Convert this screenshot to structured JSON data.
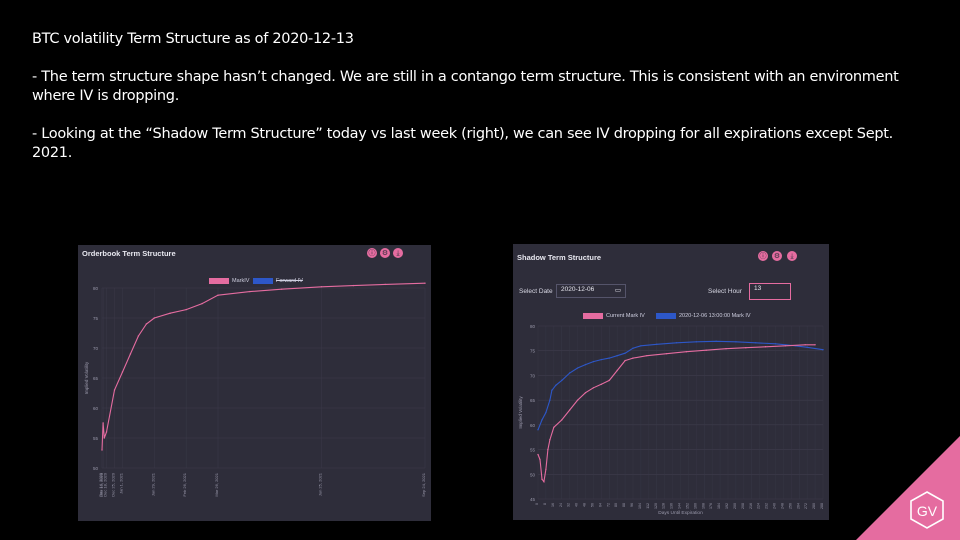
{
  "slide": {
    "heading": "BTC volatility Term Structure as of 2020-12-13",
    "bullet1": "- The term structure shape hasn’t changed. We are still in a contango term structure. This is consistent with an environment where IV is dropping.",
    "bullet2": "- Looking at the “Shadow Term Structure” today vs last week (right), we can see IV dropping for all expirations except Sept. 2021."
  },
  "colors": {
    "mark_iv": "#e56ca0",
    "forward_iv": "#2d57c8",
    "panel_bg": "#2e2d3a",
    "logo": "#e56ca0"
  },
  "left_panel": {
    "title": "Orderbook Term Structure",
    "buttons": [
      "info-icon",
      "settings-icon",
      "download-icon"
    ],
    "button_glyphs": [
      "ⓘ",
      "⚙",
      "⤓"
    ],
    "legend": [
      {
        "label": "MarkIV",
        "color": "#e56ca0"
      },
      {
        "label": "Forward IV",
        "color": "#2d57c8",
        "hidden": true
      }
    ],
    "ylabel": "Implied Volatility",
    "y_ticks": [
      "80",
      "75",
      "70",
      "65",
      "60",
      "55",
      "50"
    ],
    "x_ticks": [
      "Dec 14, 2020",
      "Dec 15, 2020",
      "Dec 18, 2020",
      "Dec 25, 2020",
      "Jan 1, 2021",
      "Jan 29, 2021",
      "Feb 26, 2021",
      "Mar 26, 2021",
      "Jun 25, 2021",
      "Sep 24, 2021"
    ]
  },
  "right_panel": {
    "title": "Shadow Term Structure",
    "buttons": [
      "info-icon",
      "settings-icon",
      "download-icon"
    ],
    "button_glyphs": [
      "ⓘ",
      "⚙",
      "⤓"
    ],
    "select_date_label": "Select Date",
    "select_date_value": "2020-12-06",
    "select_hour_label": "Select Hour",
    "select_hour_value": "13",
    "legend": [
      {
        "label": "Current Mark IV",
        "color": "#e56ca0"
      },
      {
        "label": "2020-12-06 13:00:00 Mark IV",
        "color": "#2d57c8"
      }
    ],
    "ylabel": "Implied Volatility",
    "xlabel": "Days Until Expiration",
    "y_ticks": [
      "80",
      "75",
      "70",
      "65",
      "60",
      "55",
      "50",
      "45"
    ]
  },
  "chart_data": [
    {
      "type": "line",
      "title": "Orderbook Term Structure",
      "ylabel": "Implied Volatility",
      "x_dates": [
        "2020-12-14",
        "2020-12-15",
        "2020-12-18",
        "2020-12-25",
        "2021-01-01",
        "2021-01-29",
        "2021-02-26",
        "2021-03-26",
        "2021-06-25",
        "2021-09-24"
      ],
      "ylim": [
        50,
        80
      ],
      "series": [
        {
          "name": "MarkIV",
          "points": [
            [
              "2020-12-14",
              53
            ],
            [
              "2020-12-15",
              57.5
            ],
            [
              "2020-12-16",
              55
            ],
            [
              "2020-12-18",
              56
            ],
            [
              "2020-12-25",
              63
            ],
            [
              "2021-01-01",
              66
            ],
            [
              "2021-01-08",
              69
            ],
            [
              "2021-01-15",
              72
            ],
            [
              "2021-01-22",
              74
            ],
            [
              "2021-01-29",
              75
            ],
            [
              "2021-02-12",
              75.8
            ],
            [
              "2021-02-26",
              76.4
            ],
            [
              "2021-03-12",
              77.4
            ],
            [
              "2021-03-26",
              78.8
            ],
            [
              "2021-04-23",
              79.4
            ],
            [
              "2021-05-21",
              79.8
            ],
            [
              "2021-06-25",
              80.2
            ],
            [
              "2021-07-23",
              80.4
            ],
            [
              "2021-08-20",
              80.6
            ],
            [
              "2021-09-24",
              80.8
            ]
          ]
        },
        {
          "name": "Forward IV",
          "points": []
        }
      ]
    },
    {
      "type": "line",
      "title": "Shadow Term Structure",
      "xlabel": "Days Until Expiration",
      "ylabel": "Implied Volatility",
      "xlim": [
        0,
        288
      ],
      "ylim": [
        45,
        80
      ],
      "series": [
        {
          "name": "Current Mark IV",
          "points": [
            [
              0,
              54
            ],
            [
              2,
              53
            ],
            [
              4,
              49
            ],
            [
              6,
              48.5
            ],
            [
              8,
              51
            ],
            [
              10,
              55
            ],
            [
              12,
              57
            ],
            [
              16,
              59.5
            ],
            [
              24,
              61
            ],
            [
              32,
              63
            ],
            [
              40,
              65
            ],
            [
              48,
              66.5
            ],
            [
              56,
              67.5
            ],
            [
              64,
              68.2
            ],
            [
              72,
              69
            ],
            [
              80,
              71
            ],
            [
              88,
              73
            ],
            [
              96,
              73.5
            ],
            [
              110,
              74
            ],
            [
              130,
              74.4
            ],
            [
              150,
              74.8
            ],
            [
              170,
              75.1
            ],
            [
              190,
              75.4
            ],
            [
              210,
              75.6
            ],
            [
              230,
              75.8
            ],
            [
              250,
              76
            ],
            [
              270,
              76.2
            ],
            [
              280,
              76.2
            ]
          ]
        },
        {
          "name": "2020-12-06 13:00:00 Mark IV",
          "points": [
            [
              0,
              59
            ],
            [
              4,
              61
            ],
            [
              8,
              62.5
            ],
            [
              12,
              65
            ],
            [
              14,
              67
            ],
            [
              18,
              68
            ],
            [
              24,
              69
            ],
            [
              32,
              70.5
            ],
            [
              40,
              71.5
            ],
            [
              48,
              72.2
            ],
            [
              56,
              72.8
            ],
            [
              64,
              73.2
            ],
            [
              72,
              73.5
            ],
            [
              80,
              74
            ],
            [
              88,
              74.5
            ],
            [
              96,
              75.5
            ],
            [
              104,
              76
            ],
            [
              120,
              76.3
            ],
            [
              140,
              76.6
            ],
            [
              160,
              76.8
            ],
            [
              180,
              76.9
            ],
            [
              200,
              76.8
            ],
            [
              220,
              76.6
            ],
            [
              240,
              76.4
            ],
            [
              260,
              76
            ],
            [
              272,
              75.7
            ],
            [
              288,
              75.2
            ]
          ]
        }
      ]
    }
  ]
}
